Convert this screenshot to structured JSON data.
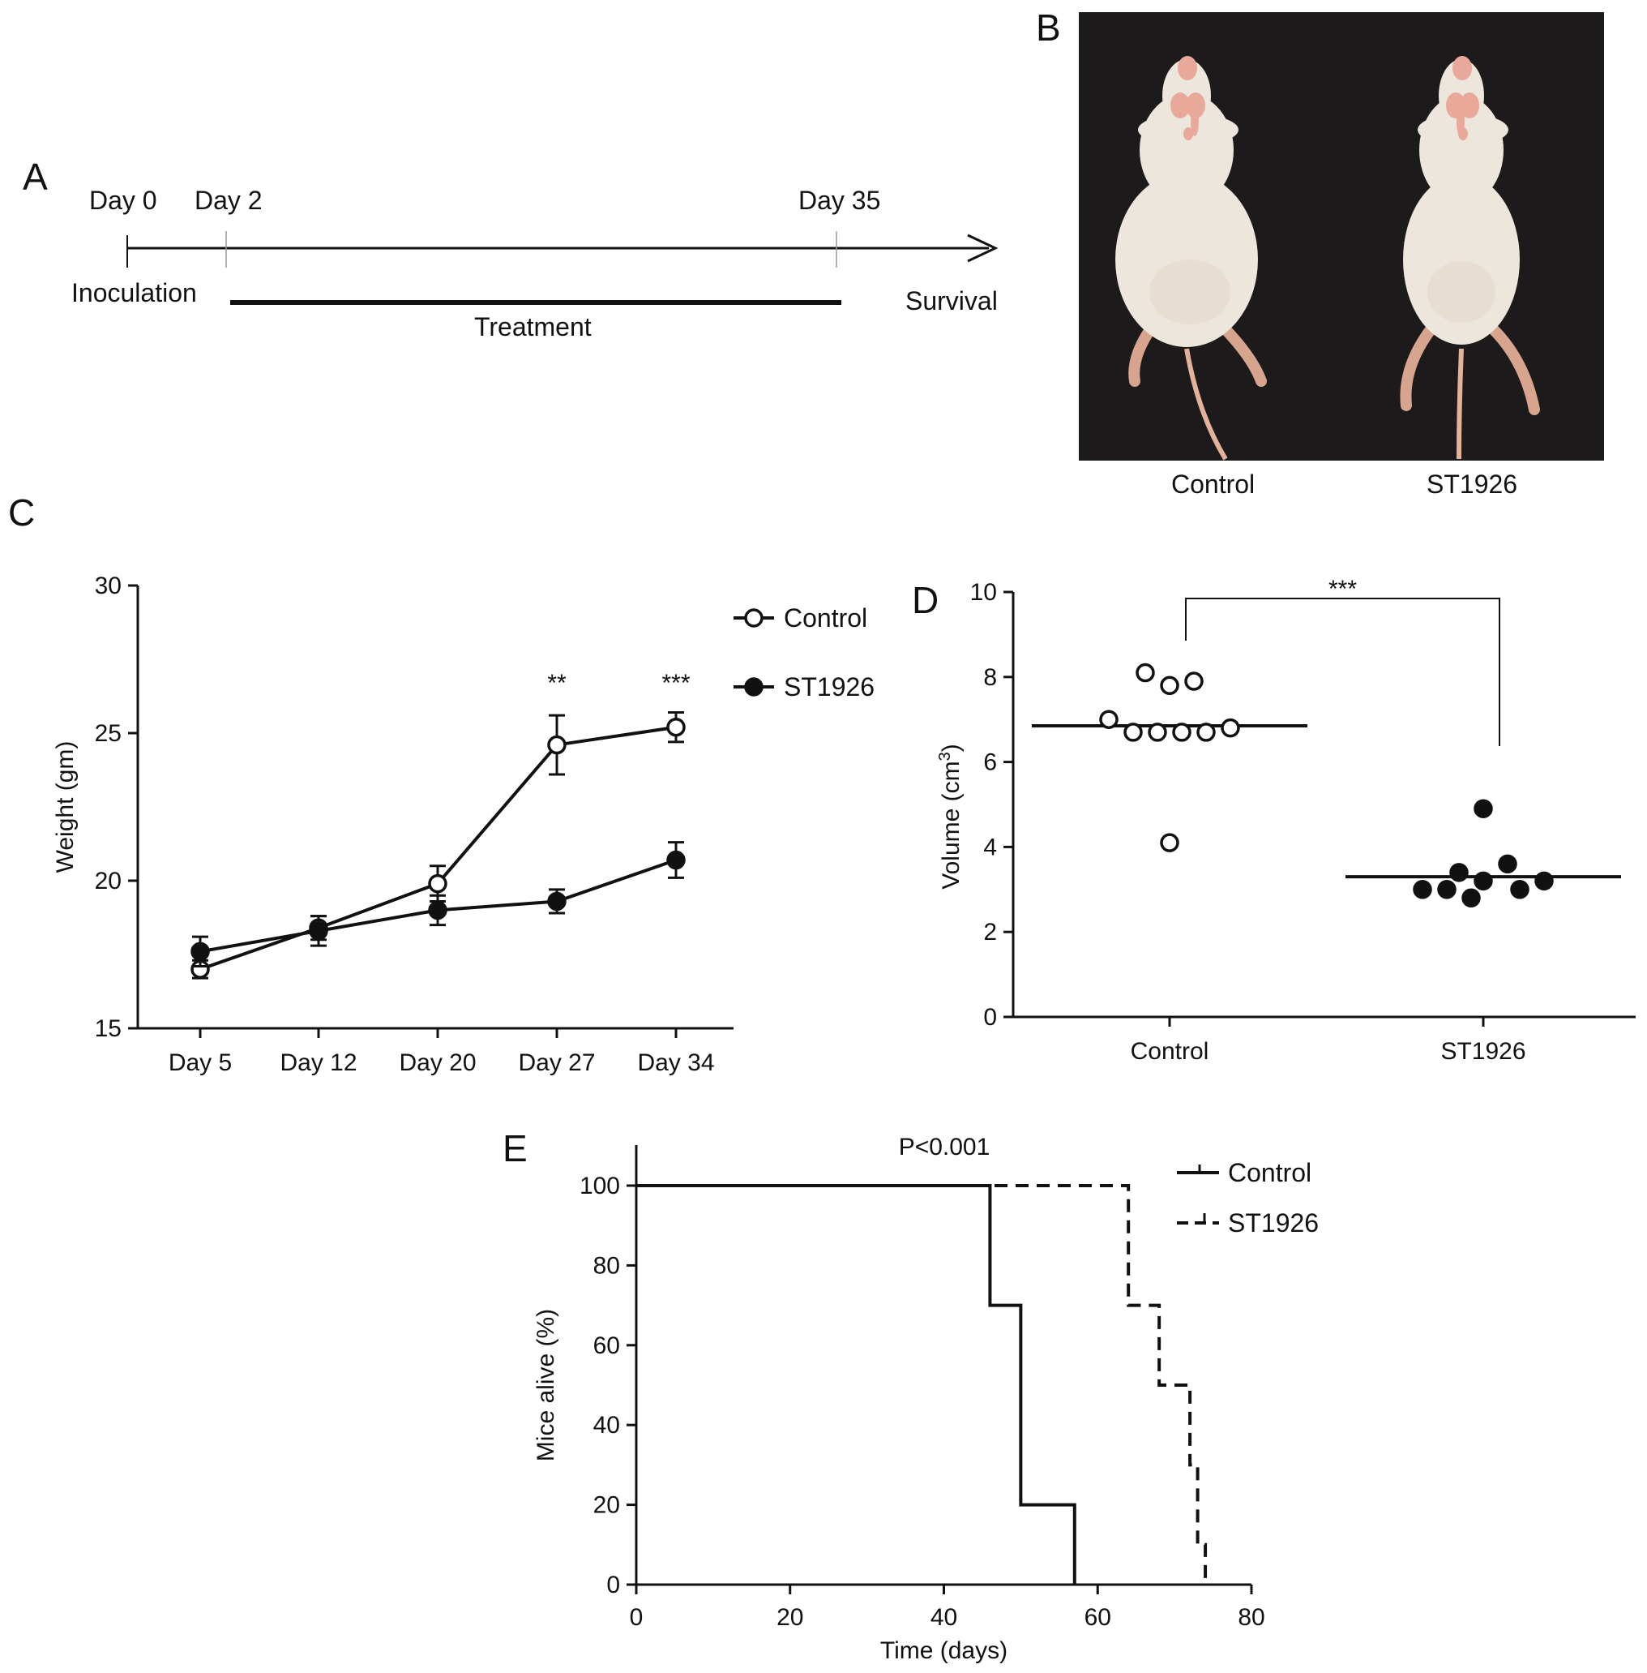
{
  "panels": {
    "a": {
      "letter": "A",
      "timeline": {
        "ticks": [
          "Day 0",
          "Day 2",
          "Day 35"
        ],
        "start_label": "Inoculation",
        "treatment_label": "Treatment",
        "end_label": "Survival"
      }
    },
    "b": {
      "letter": "B",
      "photo_labels": [
        "Control",
        "ST1926"
      ]
    },
    "c": {
      "letter": "C"
    },
    "d": {
      "letter": "D"
    },
    "e": {
      "letter": "E"
    }
  },
  "colors": {
    "line": "#111111",
    "photo_background": "#1c1a1a",
    "mouse_fur": "#ece6dc",
    "mouse_skin": "#e8a99a"
  },
  "chart_data": [
    {
      "id": "C",
      "type": "line",
      "categories": [
        "Day 5",
        "Day 12",
        "Day 20",
        "Day 27",
        "Day 34"
      ],
      "series": [
        {
          "name": "Control",
          "marker": "open-circle",
          "values": [
            17.0,
            18.4,
            19.9,
            24.6,
            25.2
          ],
          "errors": [
            0.3,
            0.4,
            0.6,
            1.0,
            0.5
          ]
        },
        {
          "name": "ST1926",
          "marker": "filled-circle",
          "values": [
            17.6,
            18.3,
            19.0,
            19.3,
            20.7
          ],
          "errors": [
            0.5,
            0.5,
            0.5,
            0.4,
            0.6
          ]
        }
      ],
      "ylabel": "Weight (gm)",
      "ylim": [
        15,
        30
      ],
      "yticks": [
        15,
        20,
        25,
        30
      ],
      "significance": [
        {
          "category": "Day 27",
          "label": "**"
        },
        {
          "category": "Day 34",
          "label": "***"
        }
      ],
      "legend": "top-right"
    },
    {
      "id": "D",
      "type": "scatter",
      "categories": [
        "Control",
        "ST1926"
      ],
      "ylabel_main": "Volume (cm",
      "ylabel_sup": "3",
      "ylabel_end": ")",
      "ylim": [
        0,
        10
      ],
      "yticks": [
        0,
        2,
        4,
        6,
        8,
        10
      ],
      "groups": [
        {
          "name": "Control",
          "marker": "open-circle",
          "mean": 6.85,
          "points": [
            [
              -0.08,
              8.1
            ],
            [
              0.0,
              7.8
            ],
            [
              0.08,
              7.9
            ],
            [
              -0.2,
              7.0
            ],
            [
              -0.04,
              6.7
            ],
            [
              0.04,
              6.7
            ],
            [
              0.12,
              6.7
            ],
            [
              0.2,
              6.8
            ],
            [
              -0.12,
              6.7
            ],
            [
              0.0,
              4.1
            ]
          ]
        },
        {
          "name": "ST1926",
          "marker": "filled-circle",
          "mean": 3.3,
          "points": [
            [
              0.0,
              4.9
            ],
            [
              0.08,
              3.6
            ],
            [
              -0.08,
              3.4
            ],
            [
              -0.2,
              3.0
            ],
            [
              -0.12,
              3.0
            ],
            [
              0.0,
              3.2
            ],
            [
              0.12,
              3.0
            ],
            [
              0.2,
              3.2
            ],
            [
              -0.04,
              2.8
            ]
          ]
        }
      ],
      "significance": {
        "label": "***"
      }
    },
    {
      "id": "E",
      "type": "line",
      "subtype": "survival-step",
      "annotation": "P<0.001",
      "xlabel": "Time (days)",
      "ylabel": "Mice alive (%)",
      "xlim": [
        0,
        80
      ],
      "ylim": [
        0,
        100
      ],
      "xticks": [
        0,
        20,
        40,
        60,
        80
      ],
      "yticks": [
        0,
        20,
        40,
        60,
        80,
        100
      ],
      "series": [
        {
          "name": "Control",
          "style": "solid",
          "steps": [
            [
              0,
              100
            ],
            [
              46,
              70
            ],
            [
              50,
              20
            ],
            [
              57,
              0
            ]
          ]
        },
        {
          "name": "ST1926",
          "style": "dashed",
          "steps": [
            [
              0,
              100
            ],
            [
              64,
              70
            ],
            [
              68,
              50
            ],
            [
              72,
              30
            ],
            [
              73,
              10
            ],
            [
              74,
              0
            ]
          ]
        }
      ],
      "legend": "top-right"
    }
  ]
}
